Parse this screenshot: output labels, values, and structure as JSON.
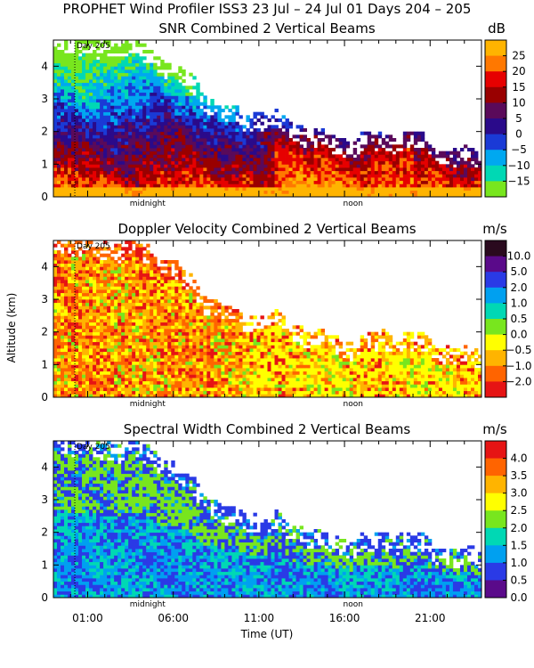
{
  "figure": {
    "title": "PROPHET Wind Profiler ISS3  23 Jul – 24 Jul 01 Days 204 – 205",
    "ylabel": "Altitude (km)",
    "xlabel": "Time (UT)",
    "x_ticks": [
      "01:00",
      "06:00",
      "11:00",
      "16:00",
      "21:00"
    ],
    "x_tick_hours": [
      1,
      6,
      11,
      16,
      21
    ],
    "xlim_hours": [
      -1.0,
      24.0
    ],
    "day_marker_hour": 0.25
  },
  "chart_data": [
    {
      "type": "heatmap",
      "title": "SNR Combined 2 Vertical Beams",
      "unit": "dB",
      "day_label": "Day 205",
      "marker_labels": [
        "midnight",
        "noon"
      ],
      "marker_hours": [
        4.5,
        16.5
      ],
      "y_ticks": [
        "0",
        "1",
        "2",
        "3",
        "4"
      ],
      "ylim": [
        0,
        4.8
      ],
      "colorbar_labels": [
        "25",
        "20",
        "15",
        "10",
        "5",
        "0",
        "−5",
        "−10",
        "−15"
      ],
      "colorbar_colors": [
        "#ffb400",
        "#ff7800",
        "#e60000",
        "#990000",
        "#5a0a5a",
        "#2a0a8a",
        "#1a3ad6",
        "#00a8f0",
        "#00d8b4",
        "#78e61e"
      ]
    },
    {
      "type": "heatmap",
      "title": "Doppler Velocity Combined 2 Vertical Beams",
      "unit": "m/s",
      "day_label": "Day 205",
      "marker_labels": [
        "midnight",
        "noon"
      ],
      "marker_hours": [
        4.5,
        16.5
      ],
      "y_ticks": [
        "0",
        "1",
        "2",
        "3",
        "4"
      ],
      "ylim": [
        0,
        4.8
      ],
      "colorbar_labels": [
        "10.0",
        "5.0",
        "2.0",
        "1.0",
        "0.5",
        "0.0",
        "−0.5",
        "−1.0",
        "−2.0"
      ],
      "colorbar_colors": [
        "#2a0a1e",
        "#5a0a8a",
        "#2a3ae6",
        "#00a0f0",
        "#00d8b4",
        "#78e61e",
        "#ffff00",
        "#ffb400",
        "#ff6400",
        "#e61414"
      ]
    },
    {
      "type": "heatmap",
      "title": "Spectral Width Combined 2 Vertical Beams",
      "unit": "m/s",
      "day_label": "Day 205",
      "marker_labels": [
        "midnight",
        "noon"
      ],
      "marker_hours": [
        4.5,
        16.5
      ],
      "y_ticks": [
        "0",
        "1",
        "2",
        "3",
        "4"
      ],
      "ylim": [
        0,
        4.8
      ],
      "colorbar_labels": [
        "4.0",
        "3.5",
        "3.0",
        "2.5",
        "2.0",
        "1.5",
        "1.0",
        "0.5",
        "0.0"
      ],
      "colorbar_colors": [
        "#e61414",
        "#ff6400",
        "#ffb400",
        "#ffff00",
        "#78e61e",
        "#00d8b4",
        "#00a0f0",
        "#2a3ae6",
        "#5a0a8a"
      ]
    }
  ]
}
